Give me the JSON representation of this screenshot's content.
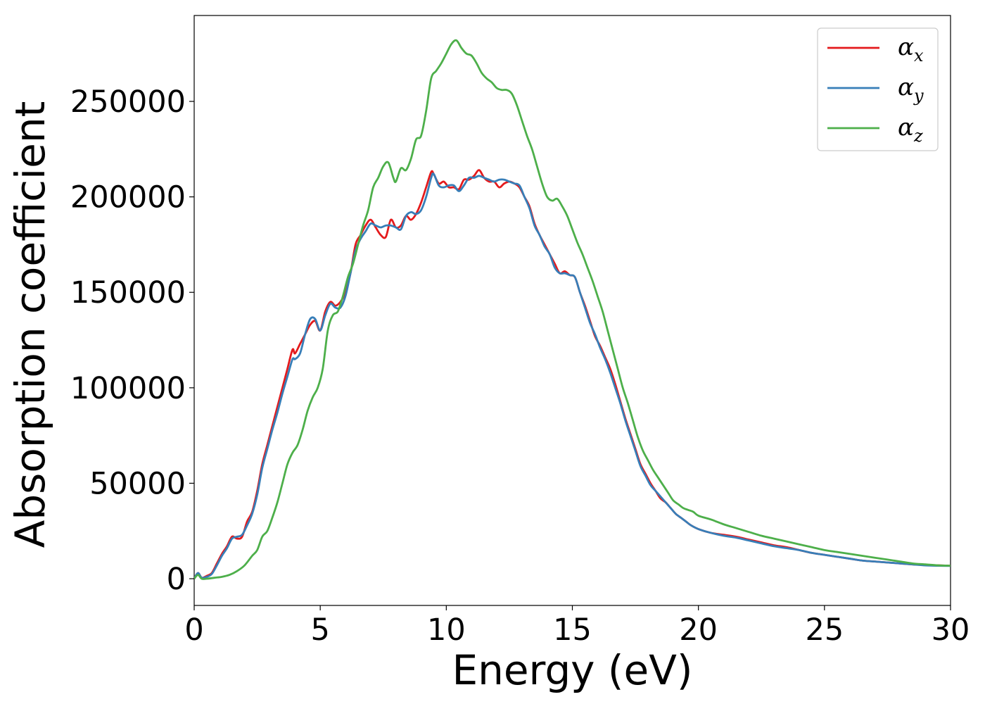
{
  "chart_data": {
    "type": "line",
    "title": "",
    "xlabel": "Energy (eV)",
    "ylabel": "Absorption coefficient",
    "xlim": [
      0,
      30
    ],
    "ylim": [
      -14000,
      295000
    ],
    "grid": false,
    "legend_position": "top-right",
    "xticks": [
      0,
      5,
      10,
      15,
      20,
      25,
      30
    ],
    "xtick_labels": [
      "0",
      "5",
      "10",
      "15",
      "20",
      "25",
      "30"
    ],
    "yticks": [
      0,
      50000,
      100000,
      150000,
      200000,
      250000
    ],
    "ytick_labels": [
      "0",
      "50000",
      "100000",
      "150000",
      "200000",
      "250000"
    ],
    "series": [
      {
        "name": "α_x",
        "symbol": "α",
        "subscript": "x",
        "color": "#e41a1c",
        "x": [
          0,
          0.15,
          0.3,
          0.5,
          0.7,
          0.9,
          1.1,
          1.3,
          1.5,
          1.7,
          1.9,
          2.1,
          2.3,
          2.5,
          2.7,
          2.9,
          3.1,
          3.3,
          3.5,
          3.7,
          3.9,
          4.0,
          4.2,
          4.4,
          4.6,
          4.8,
          5.0,
          5.2,
          5.4,
          5.6,
          5.8,
          6.0,
          6.2,
          6.4,
          6.6,
          6.8,
          7.0,
          7.2,
          7.4,
          7.6,
          7.8,
          8.0,
          8.2,
          8.4,
          8.6,
          8.8,
          9.0,
          9.2,
          9.4,
          9.5,
          9.7,
          9.9,
          10.1,
          10.3,
          10.5,
          10.7,
          10.9,
          11.1,
          11.3,
          11.5,
          11.7,
          11.9,
          12.1,
          12.3,
          12.5,
          12.7,
          12.9,
          13.1,
          13.3,
          13.5,
          13.7,
          13.9,
          14.1,
          14.3,
          14.5,
          14.7,
          14.9,
          15.1,
          15.3,
          15.5,
          15.7,
          15.9,
          16.1,
          16.3,
          16.5,
          16.7,
          16.9,
          17.1,
          17.3,
          17.5,
          17.7,
          17.9,
          18.1,
          18.3,
          18.5,
          18.7,
          18.9,
          19.1,
          19.3,
          19.5,
          19.7,
          20.0,
          20.5,
          21.0,
          21.5,
          22.0,
          22.5,
          23.0,
          23.5,
          24.0,
          24.5,
          25.0,
          25.5,
          26.0,
          26.5,
          27.0,
          27.5,
          28.0,
          28.5,
          29.0,
          29.5,
          30.0
        ],
        "y": [
          0,
          3000,
          500,
          1500,
          3000,
          8000,
          13000,
          17000,
          22000,
          21000,
          22000,
          30000,
          35000,
          46000,
          60000,
          70000,
          80000,
          90000,
          100000,
          110000,
          120000,
          118000,
          123000,
          128000,
          133000,
          135000,
          130000,
          140000,
          145000,
          143000,
          145000,
          150000,
          160000,
          175000,
          180000,
          185000,
          188000,
          184000,
          180000,
          179000,
          188000,
          184000,
          185000,
          190000,
          188000,
          191000,
          197000,
          205000,
          213000,
          212000,
          207000,
          208000,
          205000,
          205000,
          204000,
          209000,
          209000,
          211000,
          214000,
          210000,
          208000,
          208000,
          205000,
          207000,
          208000,
          207000,
          205000,
          200000,
          195000,
          186000,
          180000,
          175000,
          170000,
          165000,
          160000,
          161000,
          159000,
          158000,
          150000,
          143000,
          135000,
          127000,
          122000,
          116000,
          110000,
          102000,
          93000,
          84000,
          76000,
          68000,
          60000,
          55000,
          50000,
          46000,
          42000,
          40000,
          37000,
          34000,
          32000,
          30000,
          28000,
          26000,
          24000,
          23000,
          22000,
          20500,
          19000,
          17500,
          16500,
          15000,
          13500,
          12500,
          11500,
          10500,
          9500,
          9000,
          8500,
          8000,
          7500,
          7200,
          7000,
          6800
        ]
      },
      {
        "name": "α_y",
        "symbol": "α",
        "subscript": "y",
        "color": "#377eb8",
        "x": [
          0,
          0.15,
          0.3,
          0.5,
          0.7,
          0.9,
          1.1,
          1.3,
          1.5,
          1.7,
          1.9,
          2.1,
          2.3,
          2.5,
          2.7,
          2.9,
          3.1,
          3.3,
          3.5,
          3.7,
          3.9,
          4.0,
          4.2,
          4.4,
          4.6,
          4.8,
          5.0,
          5.2,
          5.4,
          5.6,
          5.8,
          6.0,
          6.2,
          6.4,
          6.6,
          6.8,
          7.0,
          7.2,
          7.4,
          7.6,
          7.8,
          8.0,
          8.2,
          8.4,
          8.6,
          8.8,
          9.0,
          9.2,
          9.4,
          9.5,
          9.7,
          9.9,
          10.1,
          10.3,
          10.5,
          10.7,
          10.9,
          11.1,
          11.3,
          11.5,
          11.7,
          11.9,
          12.1,
          12.3,
          12.5,
          12.7,
          12.9,
          13.1,
          13.3,
          13.5,
          13.7,
          13.9,
          14.1,
          14.3,
          14.5,
          14.7,
          14.9,
          15.1,
          15.3,
          15.5,
          15.7,
          15.9,
          16.1,
          16.3,
          16.5,
          16.7,
          16.9,
          17.1,
          17.3,
          17.5,
          17.7,
          17.9,
          18.1,
          18.3,
          18.5,
          18.7,
          18.9,
          19.1,
          19.3,
          19.5,
          19.7,
          20.0,
          20.5,
          21.0,
          21.5,
          22.0,
          22.5,
          23.0,
          23.5,
          24.0,
          24.5,
          25.0,
          25.5,
          26.0,
          26.5,
          27.0,
          27.5,
          28.0,
          28.5,
          29.0,
          29.5,
          30.0
        ],
        "y": [
          0,
          3000,
          500,
          1000,
          2500,
          7000,
          12000,
          16000,
          21000,
          22000,
          23000,
          28000,
          34000,
          44000,
          58000,
          68000,
          78000,
          87000,
          97000,
          106000,
          115000,
          115000,
          118000,
          128000,
          136000,
          136000,
          130000,
          138000,
          144000,
          142000,
          142000,
          148000,
          160000,
          172000,
          178000,
          182000,
          186000,
          185000,
          184000,
          185000,
          185000,
          184000,
          183000,
          190000,
          192000,
          191000,
          193000,
          200000,
          210000,
          212000,
          206000,
          205000,
          206000,
          206000,
          203000,
          206000,
          210000,
          210000,
          211000,
          210000,
          209000,
          208000,
          209000,
          209000,
          208000,
          207000,
          206000,
          200000,
          194000,
          185000,
          180000,
          174000,
          170000,
          163000,
          160000,
          160000,
          159000,
          158000,
          150000,
          142000,
          134000,
          128000,
          121000,
          115000,
          108000,
          100000,
          92000,
          83000,
          75000,
          67000,
          59000,
          54000,
          49000,
          46000,
          43000,
          40000,
          37000,
          34000,
          32000,
          30000,
          28000,
          26000,
          24000,
          22500,
          21500,
          20000,
          18500,
          17000,
          16000,
          15000,
          13500,
          12500,
          11500,
          10500,
          9500,
          9000,
          8500,
          8000,
          7500,
          7000,
          6800,
          6700
        ]
      },
      {
        "name": "α_z",
        "symbol": "α",
        "subscript": "z",
        "color": "#4daf4a",
        "x": [
          0,
          0.15,
          0.3,
          0.5,
          0.8,
          1.1,
          1.4,
          1.7,
          2.0,
          2.3,
          2.5,
          2.7,
          2.9,
          3.1,
          3.3,
          3.5,
          3.7,
          3.9,
          4.1,
          4.3,
          4.5,
          4.7,
          4.9,
          5.1,
          5.3,
          5.5,
          5.7,
          5.9,
          6.1,
          6.3,
          6.5,
          6.7,
          6.9,
          7.1,
          7.3,
          7.5,
          7.7,
          7.9,
          8.0,
          8.2,
          8.4,
          8.6,
          8.8,
          9.0,
          9.2,
          9.4,
          9.6,
          9.8,
          10.0,
          10.2,
          10.4,
          10.6,
          10.8,
          11.0,
          11.2,
          11.4,
          11.6,
          11.8,
          12.0,
          12.2,
          12.4,
          12.6,
          12.8,
          13.0,
          13.2,
          13.4,
          13.6,
          13.8,
          14.0,
          14.2,
          14.4,
          14.6,
          14.8,
          15.0,
          15.2,
          15.4,
          15.6,
          15.8,
          16.0,
          16.2,
          16.4,
          16.6,
          16.8,
          17.0,
          17.2,
          17.4,
          17.6,
          17.8,
          18.0,
          18.2,
          18.4,
          18.6,
          18.8,
          19.0,
          19.2,
          19.4,
          19.6,
          19.8,
          20.0,
          20.5,
          21.0,
          21.5,
          22.0,
          22.5,
          23.0,
          23.5,
          24.0,
          24.5,
          25.0,
          25.5,
          26.0,
          26.5,
          27.0,
          27.5,
          28.0,
          28.5,
          29.0,
          29.5,
          30.0
        ],
        "y": [
          0,
          2000,
          0,
          0,
          500,
          1000,
          2000,
          4000,
          7000,
          12000,
          15000,
          22000,
          25000,
          32000,
          40000,
          50000,
          60000,
          66000,
          70000,
          78000,
          88000,
          95000,
          100000,
          110000,
          130000,
          138000,
          140000,
          148000,
          158000,
          165000,
          175000,
          185000,
          193000,
          205000,
          210000,
          216000,
          218000,
          210000,
          208000,
          215000,
          214000,
          220000,
          230000,
          232000,
          245000,
          262000,
          266000,
          270000,
          275000,
          280000,
          282000,
          278000,
          275000,
          274000,
          270000,
          265000,
          262000,
          260000,
          257000,
          256000,
          256000,
          254000,
          248000,
          240000,
          232000,
          225000,
          216000,
          207000,
          200000,
          198000,
          199000,
          195000,
          190000,
          183000,
          176000,
          170000,
          163000,
          156000,
          148000,
          140000,
          130000,
          120000,
          110000,
          100000,
          92000,
          83000,
          74000,
          67000,
          62000,
          57000,
          53000,
          49000,
          45000,
          41000,
          39000,
          37000,
          36000,
          35000,
          33000,
          31000,
          28500,
          26500,
          24500,
          22500,
          21000,
          19500,
          18000,
          16500,
          15000,
          14000,
          13000,
          12000,
          11000,
          10000,
          9000,
          8000,
          7500,
          7000,
          6800
        ]
      }
    ]
  }
}
